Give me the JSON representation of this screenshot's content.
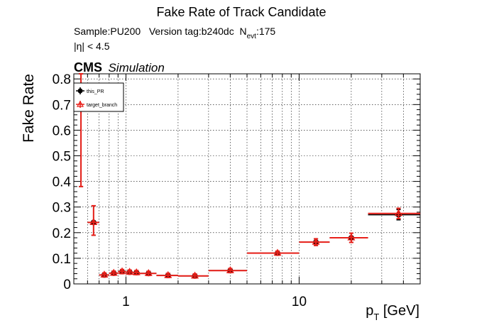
{
  "chart_data": {
    "type": "scatter",
    "title": "Fake Rate of Track Candidate",
    "info_lines": [
      {
        "prefix": "Sample:PU200   Version tag:b240dc  N",
        "sub": "evt",
        "suffix": ":175"
      },
      {
        "prefix": "|η| < 4.5",
        "sub": "",
        "suffix": ""
      }
    ],
    "cms_label": "CMS",
    "cms_sublabel": "Simulation",
    "ylabel": "Fake Rate",
    "xlabel_main": "p",
    "xlabel_sub": "T",
    "xlabel_unit": " [GeV]",
    "xscale": "log",
    "xlim": [
      0.5,
      50
    ],
    "ylim": [
      0,
      0.82
    ],
    "grid": true,
    "legend_position": "top-left",
    "x_tick_labels": [
      {
        "value": 1,
        "label": "1"
      },
      {
        "value": 10,
        "label": "10"
      }
    ],
    "y_tick_labels": [
      {
        "value": 0,
        "label": "0"
      },
      {
        "value": 0.1,
        "label": "0.1"
      },
      {
        "value": 0.2,
        "label": "0.2"
      },
      {
        "value": 0.3,
        "label": "0.3"
      },
      {
        "value": 0.4,
        "label": "0.4"
      },
      {
        "value": 0.5,
        "label": "0.5"
      },
      {
        "value": 0.6,
        "label": "0.6"
      },
      {
        "value": 0.7,
        "label": "0.7"
      },
      {
        "value": 0.8,
        "label": "0.8"
      }
    ],
    "series": [
      {
        "name": "this_PR",
        "color": "#000000",
        "marker": "circle",
        "points": [
          {
            "x": 0.55,
            "xlo": 0.5,
            "xhi": 0.6,
            "y": 0.72,
            "ylo": 0.38,
            "yhi": 0.82
          },
          {
            "x": 0.65,
            "xlo": 0.6,
            "xhi": 0.7,
            "y": 0.24,
            "ylo": 0.19,
            "yhi": 0.305
          },
          {
            "x": 0.75,
            "xlo": 0.7,
            "xhi": 0.8,
            "y": 0.035,
            "ylo": 0.027,
            "yhi": 0.043
          },
          {
            "x": 0.85,
            "xlo": 0.8,
            "xhi": 0.9,
            "y": 0.042,
            "ylo": 0.034,
            "yhi": 0.05
          },
          {
            "x": 0.95,
            "xlo": 0.9,
            "xhi": 1.0,
            "y": 0.048,
            "ylo": 0.04,
            "yhi": 0.056
          },
          {
            "x": 1.05,
            "xlo": 1.0,
            "xhi": 1.1,
            "y": 0.046,
            "ylo": 0.038,
            "yhi": 0.054
          },
          {
            "x": 1.15,
            "xlo": 1.1,
            "xhi": 1.2,
            "y": 0.044,
            "ylo": 0.036,
            "yhi": 0.052
          },
          {
            "x": 1.35,
            "xlo": 1.2,
            "xhi": 1.5,
            "y": 0.041,
            "ylo": 0.033,
            "yhi": 0.049
          },
          {
            "x": 1.75,
            "xlo": 1.5,
            "xhi": 2.0,
            "y": 0.033,
            "ylo": 0.025,
            "yhi": 0.041
          },
          {
            "x": 2.5,
            "xlo": 2.0,
            "xhi": 3.0,
            "y": 0.031,
            "ylo": 0.023,
            "yhi": 0.039
          },
          {
            "x": 4.0,
            "xlo": 3.0,
            "xhi": 5.0,
            "y": 0.052,
            "ylo": 0.044,
            "yhi": 0.06
          },
          {
            "x": 7.5,
            "xlo": 5.0,
            "xhi": 10.0,
            "y": 0.12,
            "ylo": 0.112,
            "yhi": 0.128
          },
          {
            "x": 12.5,
            "xlo": 10.0,
            "xhi": 15.0,
            "y": 0.163,
            "ylo": 0.15,
            "yhi": 0.176
          },
          {
            "x": 20.0,
            "xlo": 15.0,
            "xhi": 25.0,
            "y": 0.18,
            "ylo": 0.162,
            "yhi": 0.198
          },
          {
            "x": 37.5,
            "xlo": 25.0,
            "xhi": 50.0,
            "y": 0.27,
            "ylo": 0.25,
            "yhi": 0.29
          }
        ]
      },
      {
        "name": "target_branch",
        "color": "#e8201a",
        "marker": "triangle",
        "points": [
          {
            "x": 0.55,
            "xlo": 0.5,
            "xhi": 0.6,
            "y": 0.72,
            "ylo": 0.38,
            "yhi": 0.82
          },
          {
            "x": 0.65,
            "xlo": 0.6,
            "xhi": 0.7,
            "y": 0.24,
            "ylo": 0.19,
            "yhi": 0.305
          },
          {
            "x": 0.75,
            "xlo": 0.7,
            "xhi": 0.8,
            "y": 0.035,
            "ylo": 0.027,
            "yhi": 0.043
          },
          {
            "x": 0.85,
            "xlo": 0.8,
            "xhi": 0.9,
            "y": 0.042,
            "ylo": 0.034,
            "yhi": 0.05
          },
          {
            "x": 0.95,
            "xlo": 0.9,
            "xhi": 1.0,
            "y": 0.048,
            "ylo": 0.04,
            "yhi": 0.056
          },
          {
            "x": 1.05,
            "xlo": 1.0,
            "xhi": 1.1,
            "y": 0.046,
            "ylo": 0.038,
            "yhi": 0.054
          },
          {
            "x": 1.15,
            "xlo": 1.1,
            "xhi": 1.2,
            "y": 0.044,
            "ylo": 0.036,
            "yhi": 0.052
          },
          {
            "x": 1.35,
            "xlo": 1.2,
            "xhi": 1.5,
            "y": 0.041,
            "ylo": 0.033,
            "yhi": 0.049
          },
          {
            "x": 1.75,
            "xlo": 1.5,
            "xhi": 2.0,
            "y": 0.033,
            "ylo": 0.025,
            "yhi": 0.041
          },
          {
            "x": 2.5,
            "xlo": 2.0,
            "xhi": 3.0,
            "y": 0.031,
            "ylo": 0.023,
            "yhi": 0.039
          },
          {
            "x": 4.0,
            "xlo": 3.0,
            "xhi": 5.0,
            "y": 0.052,
            "ylo": 0.044,
            "yhi": 0.06
          },
          {
            "x": 7.5,
            "xlo": 5.0,
            "xhi": 10.0,
            "y": 0.12,
            "ylo": 0.112,
            "yhi": 0.128
          },
          {
            "x": 12.5,
            "xlo": 10.0,
            "xhi": 15.0,
            "y": 0.163,
            "ylo": 0.15,
            "yhi": 0.176
          },
          {
            "x": 20.0,
            "xlo": 15.0,
            "xhi": 25.0,
            "y": 0.18,
            "ylo": 0.162,
            "yhi": 0.198
          },
          {
            "x": 37.5,
            "xlo": 25.0,
            "xhi": 50.0,
            "y": 0.275,
            "ylo": 0.255,
            "yhi": 0.295
          }
        ]
      }
    ]
  }
}
